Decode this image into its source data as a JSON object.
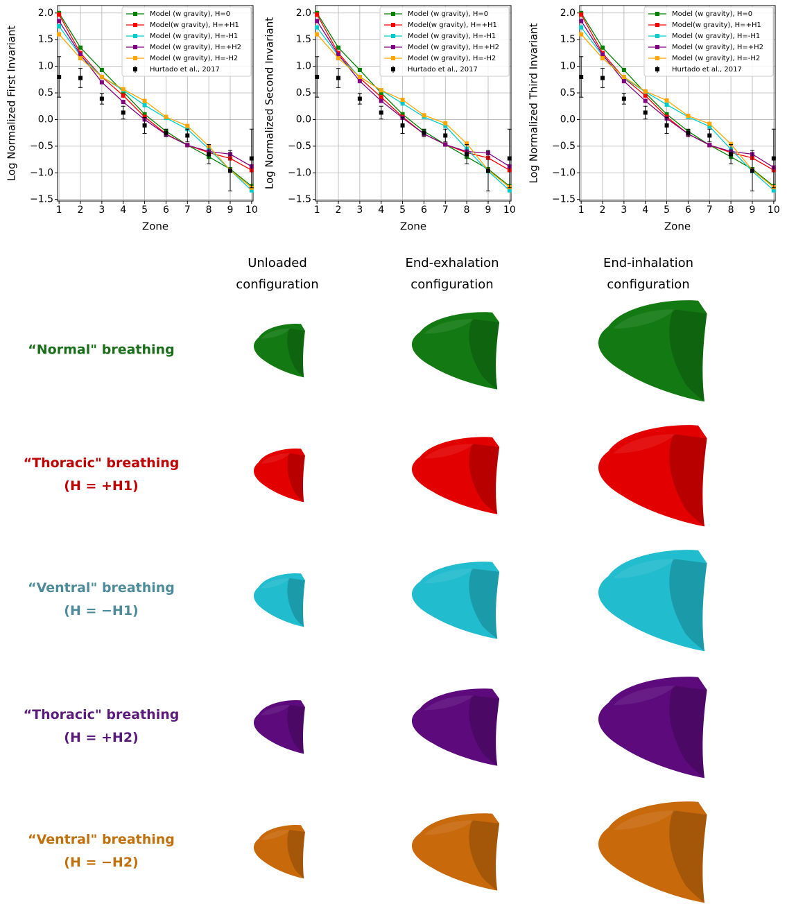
{
  "chart_data": [
    {
      "type": "line",
      "ylabel": "Log Normalized First Invariant",
      "xlabel": "Zone",
      "x": [
        1,
        2,
        3,
        4,
        5,
        6,
        7,
        8,
        9,
        10
      ],
      "xlim": [
        0.93,
        10.07
      ],
      "xticks": [
        1,
        2,
        3,
        4,
        5,
        6,
        7,
        8,
        9,
        10
      ],
      "ylim": [
        -1.53,
        2.14
      ],
      "yticks": [
        {
          "value": -1.5,
          "label": "−1.5"
        },
        {
          "value": -1,
          "label": "−1.0"
        },
        {
          "value": -0.5,
          "label": "−0.5"
        },
        {
          "value": 0,
          "label": "0.0"
        },
        {
          "value": 0.5,
          "label": "0.5"
        },
        {
          "value": 1,
          "label": "1.0"
        },
        {
          "value": 1.5,
          "label": "1.5"
        },
        {
          "value": 2,
          "label": "2.0"
        }
      ],
      "grid": true,
      "legend": "upper right",
      "series": [
        {
          "name": "Model (w gravity), H=0",
          "color": "#008000",
          "values": [
            2.0,
            1.35,
            0.93,
            0.52,
            0.1,
            -0.22,
            -0.48,
            -0.7,
            -0.93,
            -1.25
          ]
        },
        {
          "name": "Model(w gravity), H=+H1",
          "color": "#ff0000",
          "values": [
            1.97,
            1.25,
            0.8,
            0.45,
            0.05,
            -0.27,
            -0.48,
            -0.62,
            -0.73,
            -0.95
          ]
        },
        {
          "name": "Model (w gravity), H=-H1",
          "color": "#00cccc",
          "values": [
            1.75,
            1.2,
            0.8,
            0.55,
            0.27,
            0.03,
            -0.18,
            -0.55,
            -0.95,
            -1.33
          ]
        },
        {
          "name": "Model (w gravity), H=+H2",
          "color": "#800080",
          "values": [
            1.85,
            1.22,
            0.7,
            0.33,
            0.0,
            -0.28,
            -0.48,
            -0.6,
            -0.65,
            -0.88
          ]
        },
        {
          "name": "Model (w gravity), H=-H2",
          "color": "#ffa500",
          "values": [
            1.6,
            1.15,
            0.8,
            0.57,
            0.35,
            0.05,
            -0.12,
            -0.5,
            -0.95,
            -1.28
          ]
        },
        {
          "name": "Hurtado et al., 2017",
          "color": "#000000",
          "values": [
            0.8,
            0.78,
            0.39,
            0.13,
            -0.11,
            -0.25,
            -0.3,
            -0.65,
            -0.96,
            -0.73
          ],
          "errors": [
            0.38,
            0.18,
            0.1,
            0.12,
            0.15,
            0.07,
            0.12,
            0.18,
            0.38,
            0.55
          ]
        }
      ]
    },
    {
      "type": "line",
      "ylabel": "Log Normalized Second Invariant",
      "xlabel": "Zone",
      "x": [
        1,
        2,
        3,
        4,
        5,
        6,
        7,
        8,
        9,
        10
      ],
      "xlim": [
        0.93,
        10.07
      ],
      "xticks": [
        1,
        2,
        3,
        4,
        5,
        6,
        7,
        8,
        9,
        10
      ],
      "ylim": [
        -1.53,
        2.14
      ],
      "yticks": [
        {
          "value": -1.5,
          "label": "−1.5"
        },
        {
          "value": -1,
          "label": "−1.0"
        },
        {
          "value": -0.5,
          "label": "−0.5"
        },
        {
          "value": 0,
          "label": "0.0"
        },
        {
          "value": 0.5,
          "label": "0.5"
        },
        {
          "value": 1,
          "label": "1.0"
        },
        {
          "value": 1.5,
          "label": "1.5"
        },
        {
          "value": 2,
          "label": "2.0"
        }
      ],
      "grid": true,
      "legend": "upper right",
      "series": [
        {
          "name": "Model (w gravity), H=0",
          "color": "#008000",
          "values": [
            2.0,
            1.35,
            0.93,
            0.5,
            0.1,
            -0.22,
            -0.47,
            -0.7,
            -0.93,
            -1.25
          ]
        },
        {
          "name": "Model(w gravity), H=+H1",
          "color": "#ff0000",
          "values": [
            1.97,
            1.25,
            0.78,
            0.42,
            0.05,
            -0.27,
            -0.47,
            -0.62,
            -0.72,
            -0.95
          ]
        },
        {
          "name": "Model (w gravity), H=-H1",
          "color": "#00cccc",
          "values": [
            1.73,
            1.2,
            0.8,
            0.55,
            0.3,
            0.05,
            -0.12,
            -0.55,
            -0.97,
            -1.33
          ]
        },
        {
          "name": "Model (w gravity), H=+H2",
          "color": "#800080",
          "values": [
            1.85,
            1.22,
            0.72,
            0.35,
            0.03,
            -0.27,
            -0.47,
            -0.6,
            -0.63,
            -0.88
          ]
        },
        {
          "name": "Model (w gravity), H=-H2",
          "color": "#ffa500",
          "values": [
            1.6,
            1.15,
            0.8,
            0.55,
            0.37,
            0.08,
            -0.07,
            -0.45,
            -0.95,
            -1.27
          ]
        },
        {
          "name": "Hurtado et al., 2017",
          "color": "#000000",
          "values": [
            0.8,
            0.78,
            0.39,
            0.13,
            -0.11,
            -0.25,
            -0.3,
            -0.65,
            -0.96,
            -0.73
          ],
          "errors": [
            0.38,
            0.18,
            0.1,
            0.12,
            0.15,
            0.07,
            0.12,
            0.18,
            0.38,
            0.55
          ]
        }
      ]
    },
    {
      "type": "line",
      "ylabel": "Log Normalized Third Invariant",
      "xlabel": "Zone",
      "x": [
        1,
        2,
        3,
        4,
        5,
        6,
        7,
        8,
        9,
        10
      ],
      "xlim": [
        0.93,
        10.07
      ],
      "xticks": [
        1,
        2,
        3,
        4,
        5,
        6,
        7,
        8,
        9,
        10
      ],
      "ylim": [
        -1.53,
        2.14
      ],
      "yticks": [
        {
          "value": -1.5,
          "label": "−1.5"
        },
        {
          "value": -1,
          "label": "−1.0"
        },
        {
          "value": -0.5,
          "label": "−0.5"
        },
        {
          "value": 0,
          "label": "0.0"
        },
        {
          "value": 0.5,
          "label": "0.5"
        },
        {
          "value": 1,
          "label": "1.0"
        },
        {
          "value": 1.5,
          "label": "1.5"
        },
        {
          "value": 2,
          "label": "2.0"
        }
      ],
      "grid": true,
      "legend": "upper right",
      "series": [
        {
          "name": "Model (w gravity), H=0",
          "color": "#008000",
          "values": [
            2.0,
            1.35,
            0.93,
            0.5,
            0.1,
            -0.22,
            -0.48,
            -0.7,
            -0.93,
            -1.25
          ]
        },
        {
          "name": "Model(w gravity), H=+H1",
          "color": "#ff0000",
          "values": [
            1.97,
            1.25,
            0.78,
            0.45,
            0.05,
            -0.27,
            -0.48,
            -0.62,
            -0.72,
            -0.95
          ]
        },
        {
          "name": "Model (w gravity), H=-H1",
          "color": "#00cccc",
          "values": [
            1.73,
            1.2,
            0.78,
            0.52,
            0.28,
            0.05,
            -0.13,
            -0.56,
            -0.97,
            -1.33
          ]
        },
        {
          "name": "Model (w gravity), H=+H2",
          "color": "#800080",
          "values": [
            1.85,
            1.22,
            0.72,
            0.35,
            0.02,
            -0.27,
            -0.48,
            -0.6,
            -0.65,
            -0.9
          ]
        },
        {
          "name": "Model (w gravity), H=-H2",
          "color": "#ffa500",
          "values": [
            1.6,
            1.15,
            0.8,
            0.53,
            0.36,
            0.07,
            -0.08,
            -0.46,
            -0.95,
            -1.27
          ]
        },
        {
          "name": "Hurtado et al., 2017",
          "color": "#000000",
          "values": [
            0.8,
            0.78,
            0.39,
            0.13,
            -0.11,
            -0.25,
            -0.3,
            -0.65,
            -0.96,
            -0.73
          ],
          "errors": [
            0.38,
            0.18,
            0.1,
            0.12,
            0.15,
            0.07,
            0.12,
            0.18,
            0.38,
            0.55
          ]
        }
      ]
    }
  ],
  "figure": {
    "columns": [
      [
        "Unloaded",
        "configuration"
      ],
      [
        "End-exhalation",
        "configuration"
      ],
      [
        "End-inhalation",
        "configuration"
      ]
    ],
    "rows": [
      {
        "lines": [
          "“Normal\" breathing"
        ],
        "color": "#1a6e1a",
        "shape_color": "#137a13"
      },
      {
        "lines": [
          "“Thoracic\" breathing",
          "(H = +H1)"
        ],
        "color": "#c00000",
        "shape_color": "#e20000"
      },
      {
        "lines": [
          "“Ventral\" breathing",
          "(H = −H1)"
        ],
        "color": "#4d8b9a",
        "shape_color": "#22bccf"
      },
      {
        "lines": [
          "“Thoracic\" breathing",
          "(H = +H2)"
        ],
        "color": "#5a1a7a",
        "shape_color": "#5c0a7c"
      },
      {
        "lines": [
          "“Ventral\" breathing",
          "(H = −H2)"
        ],
        "color": "#c0700a",
        "shape_color": "#c8690c"
      }
    ]
  }
}
